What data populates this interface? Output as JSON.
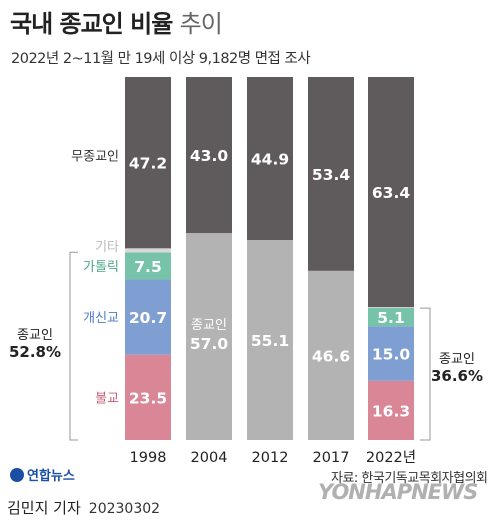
{
  "header": {
    "title_main": "국내 종교인 비율",
    "title_suffix": "추이",
    "subtitle": "2022년 2~11월 만 19세 이상 9,182명 면접 조사"
  },
  "colors": {
    "no_religion": "#5f5b5c",
    "religious_total": "#b3b3b3",
    "other": "#d9d9d9",
    "catholic": "#76c3a9",
    "protestant": "#7f9fd2",
    "buddhism": "#d98697",
    "label_no_religion": "#333333",
    "label_other": "#bbbbbb",
    "label_catholic": "#4aa787",
    "label_protestant": "#4c7fc6",
    "label_buddhism": "#c75f79"
  },
  "chart_data": {
    "type": "bar",
    "stacked": true,
    "categories": [
      "1998",
      "2004",
      "2012",
      "2017",
      "2022년"
    ],
    "series": [
      {
        "key": "buddhism",
        "name": "불교",
        "values": [
          23.5,
          null,
          null,
          null,
          16.3
        ]
      },
      {
        "key": "protestant",
        "name": "개신교",
        "values": [
          20.7,
          null,
          null,
          null,
          15.0
        ]
      },
      {
        "key": "catholic",
        "name": "가톨릭",
        "values": [
          7.5,
          null,
          null,
          null,
          5.1
        ]
      },
      {
        "key": "other",
        "name": "기타",
        "values": [
          1.1,
          null,
          null,
          null,
          0.2
        ]
      },
      {
        "key": "religious_total",
        "name": "종교인",
        "values": [
          null,
          57.0,
          55.1,
          46.6,
          null
        ]
      },
      {
        "key": "no_religion",
        "name": "무종교인",
        "values": [
          47.2,
          43.0,
          44.9,
          53.4,
          63.4
        ]
      }
    ],
    "ylim": [
      0,
      100
    ],
    "inbar_label_2004": "종교인",
    "brackets": [
      {
        "label": "종교인",
        "value": "52.8%",
        "side": "left"
      },
      {
        "label": "종교인",
        "value": "36.6%",
        "side": "right"
      }
    ]
  },
  "footer": {
    "logo_text": "연합뉴스",
    "source": "자료: 한국기독교목회자협의회",
    "byline": "김민지 기자",
    "date": "20230302",
    "watermark": "YONHAPNEWS"
  }
}
